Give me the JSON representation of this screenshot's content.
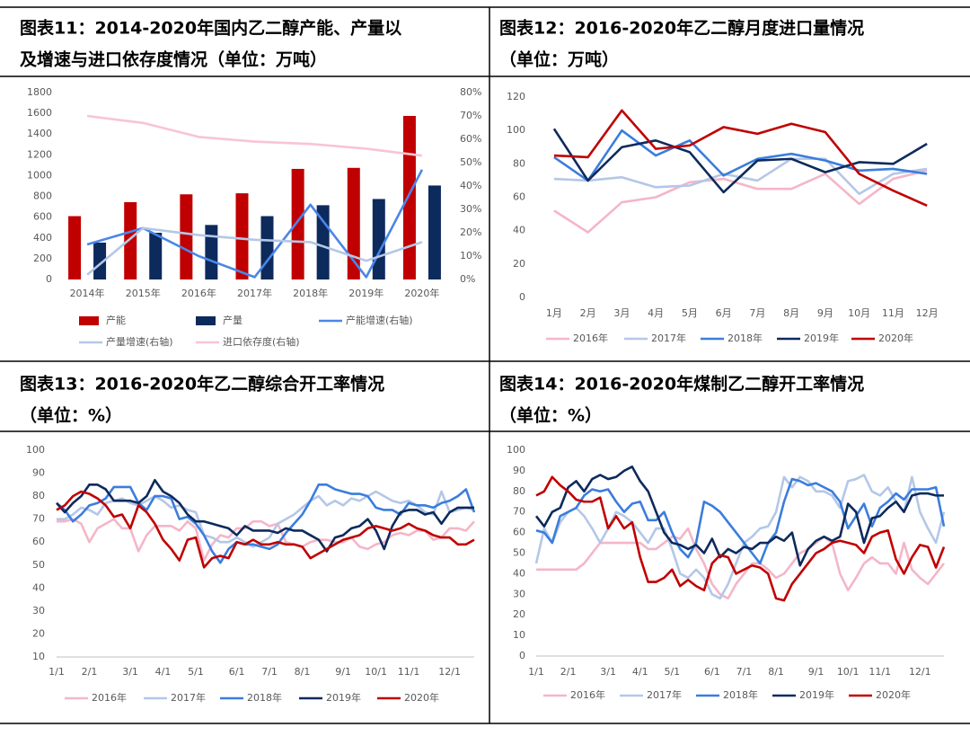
{
  "chart_data": [
    {
      "type": "bar",
      "title": [
        "图表11：2014-2020年国内乙二醇产能、产量以",
        "及增速与进口依存度情况（单位：万吨）"
      ],
      "categories": [
        "2014年",
        "2015年",
        "2016年",
        "2017年",
        "2018年",
        "2019年",
        "2020年"
      ],
      "series": [
        {
          "name": "产能",
          "type": "bar",
          "color": "#c00000",
          "values": [
            610,
            745,
            820,
            830,
            1065,
            1075,
            1575
          ]
        },
        {
          "name": "产量",
          "type": "bar",
          "color": "#0d2a5c",
          "values": [
            355,
            450,
            525,
            610,
            715,
            775,
            905
          ]
        },
        {
          "name": "产能增速(右轴)",
          "type": "line",
          "axis": "y2",
          "color": "#4a86e8",
          "values": [
            15,
            22,
            10,
            1,
            32,
            1,
            47
          ]
        },
        {
          "name": "产量增速(右轴)",
          "type": "line",
          "axis": "y2",
          "color": "#b4c7e7",
          "values": [
            2,
            22,
            19,
            17,
            16,
            8,
            16
          ]
        },
        {
          "name": "进口依存度(右轴)",
          "type": "line",
          "axis": "y2",
          "color": "#f9c4d2",
          "values": [
            70,
            67,
            61,
            59,
            58,
            56,
            53
          ]
        }
      ],
      "ylim": [
        0,
        1800
      ],
      "yticks": [
        0,
        200,
        400,
        600,
        800,
        1000,
        1200,
        1400,
        1600,
        1800
      ],
      "y2lim": [
        0,
        80
      ],
      "y2ticks": [
        {
          "value": 0,
          "label": "0%"
        },
        {
          "value": 10,
          "label": "10%"
        },
        {
          "value": 20,
          "label": "20%"
        },
        {
          "value": 30,
          "label": "30%"
        },
        {
          "value": 40,
          "label": "40%"
        },
        {
          "value": 50,
          "label": "50%"
        },
        {
          "value": 60,
          "label": "60%"
        },
        {
          "value": 70,
          "label": "70%"
        },
        {
          "value": 80,
          "label": "80%"
        }
      ],
      "grid": false
    },
    {
      "type": "line",
      "title": [
        "图表12：2016-2020年乙二醇月度进口量情况",
        "（单位：万吨）"
      ],
      "categories": [
        "1月",
        "2月",
        "3月",
        "4月",
        "5月",
        "6月",
        "7月",
        "8月",
        "9月",
        "10月",
        "11月",
        "12月"
      ],
      "series": [
        {
          "name": "2016年",
          "color": "#f4b6c8",
          "values": [
            52,
            39,
            57,
            60,
            69,
            71,
            65,
            65,
            74,
            56,
            71,
            76
          ]
        },
        {
          "name": "2017年",
          "color": "#b4c7e7",
          "values": [
            71,
            70,
            72,
            66,
            67,
            74,
            70,
            83,
            83,
            62,
            74,
            77
          ]
        },
        {
          "name": "2018年",
          "color": "#3b7ddd",
          "values": [
            84,
            70,
            100,
            85,
            94,
            73,
            83,
            86,
            82,
            76,
            77,
            74
          ]
        },
        {
          "name": "2019年",
          "color": "#0d2a5c",
          "values": [
            101,
            70,
            90,
            94,
            87,
            63,
            82,
            83,
            75,
            81,
            80,
            92
          ]
        },
        {
          "name": "2020年",
          "color": "#c00000",
          "values": [
            85,
            84,
            112,
            89,
            91,
            102,
            98,
            104,
            99,
            74,
            64,
            55
          ]
        }
      ],
      "ylim": [
        0,
        120
      ],
      "yticks": [
        0,
        20,
        40,
        60,
        80,
        100,
        120
      ],
      "grid": false
    },
    {
      "type": "line",
      "title": [
        "图表13：2016-2020年乙二醇综合开工率情况",
        "（单位：%）"
      ],
      "categories": [
        "1/1",
        null,
        null,
        null,
        "2/1",
        null,
        null,
        null,
        null,
        "3/1",
        null,
        null,
        null,
        "4/1",
        null,
        null,
        null,
        "5/1",
        null,
        null,
        null,
        null,
        "6/1",
        null,
        null,
        null,
        "7/1",
        null,
        null,
        null,
        "8/1",
        null,
        null,
        null,
        null,
        "9/1",
        null,
        null,
        null,
        "10/1",
        null,
        null,
        null,
        "11/1",
        null,
        null,
        null,
        null,
        "12/1",
        null,
        null,
        null
      ],
      "series": [
        {
          "name": "2016年",
          "color": "#f4b6c8",
          "values": [
            69,
            69,
            70,
            68,
            60,
            66,
            68,
            70,
            66,
            66,
            56,
            63,
            67,
            67,
            67,
            65,
            69,
            66,
            52,
            59,
            63,
            62,
            66,
            66,
            69,
            69,
            67,
            68,
            60,
            59,
            58,
            60,
            61,
            61,
            60,
            60,
            62,
            58,
            57,
            59,
            60,
            63,
            64,
            63,
            65,
            65,
            61,
            62,
            66,
            66,
            65,
            69
          ]
        },
        {
          "name": "2017年",
          "color": "#b4c7e7",
          "values": [
            70,
            70,
            72,
            75,
            74,
            72,
            77,
            78,
            79,
            77,
            76,
            78,
            80,
            78,
            75,
            76,
            74,
            73,
            63,
            62,
            60,
            60,
            62,
            60,
            58,
            60,
            62,
            68,
            70,
            72,
            75,
            78,
            80,
            76,
            78,
            76,
            79,
            78,
            80,
            82,
            80,
            78,
            77,
            78,
            76,
            73,
            72,
            82,
            73,
            74,
            75,
            74
          ]
        },
        {
          "name": "2018年",
          "color": "#3b7ddd",
          "values": [
            77,
            74,
            69,
            72,
            76,
            77,
            79,
            84,
            84,
            84,
            77,
            74,
            80,
            80,
            79,
            70,
            71,
            68,
            63,
            56,
            51,
            57,
            60,
            59,
            59,
            58,
            57,
            59,
            64,
            68,
            72,
            78,
            85,
            85,
            83,
            82,
            81,
            81,
            80,
            75,
            74,
            74,
            72,
            77,
            76,
            76,
            75,
            77,
            78,
            80,
            83,
            73
          ]
        },
        {
          "name": "2019年",
          "color": "#0d2a5c",
          "values": [
            77,
            73,
            77,
            80,
            85,
            85,
            83,
            78,
            78,
            78,
            77,
            80,
            87,
            82,
            80,
            77,
            72,
            69,
            69,
            68,
            67,
            66,
            63,
            67,
            65,
            65,
            65,
            64,
            66,
            65,
            65,
            63,
            61,
            56,
            62,
            63,
            66,
            67,
            70,
            65,
            57,
            67,
            73,
            74,
            74,
            72,
            73,
            68,
            73,
            75,
            75,
            75
          ]
        },
        {
          "name": "2020年",
          "color": "#c00000",
          "values": [
            74,
            76,
            80,
            82,
            81,
            79,
            76,
            71,
            72,
            66,
            76,
            73,
            68,
            61,
            57,
            52,
            61,
            62,
            49,
            53,
            54,
            53,
            60,
            59,
            61,
            59,
            59,
            60,
            59,
            59,
            58,
            53,
            55,
            57,
            59,
            61,
            62,
            63,
            66,
            67,
            66,
            65,
            66,
            68,
            66,
            65,
            63,
            62,
            62,
            59,
            59,
            61
          ]
        }
      ],
      "ylim": [
        10,
        100
      ],
      "yticks": [
        10,
        20,
        30,
        40,
        50,
        60,
        70,
        80,
        90,
        100
      ],
      "grid": false
    },
    {
      "type": "line",
      "title": [
        "图表14：2016-2020年煤制乙二醇开工率情况",
        "（单位：%）"
      ],
      "categories": [
        "1/1",
        null,
        null,
        null,
        "2/1",
        null,
        null,
        null,
        null,
        "3/1",
        null,
        null,
        null,
        "4/1",
        null,
        null,
        null,
        "5/1",
        null,
        null,
        null,
        null,
        "6/1",
        null,
        null,
        null,
        "7/1",
        null,
        null,
        null,
        "8/1",
        null,
        null,
        null,
        null,
        "9/1",
        null,
        null,
        null,
        "10/1",
        null,
        null,
        null,
        "11/1",
        null,
        null,
        null,
        null,
        "12/1",
        null,
        null,
        null
      ],
      "series": [
        {
          "name": "2016年",
          "color": "#f4b6c8",
          "values": [
            42,
            42,
            42,
            42,
            42,
            42,
            45,
            50,
            55,
            55,
            55,
            55,
            55,
            55,
            52,
            52,
            55,
            58,
            57,
            62,
            52,
            45,
            35,
            30,
            28,
            35,
            40,
            45,
            45,
            42,
            38,
            40,
            45,
            50,
            52,
            55,
            58,
            55,
            40,
            32,
            38,
            45,
            48,
            45,
            45,
            40,
            55,
            42,
            38,
            35,
            40,
            45
          ]
        },
        {
          "name": "2017年",
          "color": "#b4c7e7",
          "values": [
            45,
            62,
            55,
            65,
            70,
            72,
            68,
            62,
            55,
            62,
            70,
            68,
            65,
            60,
            55,
            62,
            62,
            52,
            40,
            38,
            42,
            38,
            30,
            28,
            35,
            45,
            55,
            58,
            62,
            63,
            70,
            87,
            82,
            87,
            85,
            80,
            80,
            78,
            72,
            85,
            86,
            88,
            80,
            78,
            82,
            75,
            70,
            87,
            70,
            62,
            55,
            70
          ]
        },
        {
          "name": "2018年",
          "color": "#3b7ddd",
          "values": [
            61,
            60,
            55,
            68,
            70,
            72,
            78,
            81,
            80,
            81,
            75,
            70,
            74,
            75,
            66,
            66,
            70,
            60,
            52,
            48,
            55,
            75,
            73,
            70,
            65,
            60,
            55,
            50,
            45,
            55,
            60,
            75,
            86,
            85,
            83,
            84,
            82,
            80,
            75,
            62,
            68,
            74,
            63,
            72,
            75,
            79,
            76,
            81,
            81,
            81,
            82,
            63
          ]
        },
        {
          "name": "2019年",
          "color": "#0d2a5c",
          "values": [
            68,
            63,
            70,
            72,
            82,
            85,
            80,
            86,
            88,
            86,
            87,
            90,
            92,
            85,
            80,
            70,
            60,
            55,
            54,
            52,
            54,
            50,
            57,
            48,
            52,
            50,
            53,
            52,
            55,
            55,
            58,
            56,
            60,
            44,
            52,
            56,
            58,
            56,
            58,
            74,
            70,
            55,
            67,
            68,
            72,
            75,
            70,
            78,
            79,
            79,
            78,
            78
          ]
        },
        {
          "name": "2020年",
          "color": "#c00000",
          "values": [
            78,
            80,
            87,
            83,
            80,
            76,
            75,
            75,
            77,
            62,
            68,
            62,
            65,
            48,
            36,
            36,
            38,
            42,
            34,
            37,
            34,
            32,
            45,
            49,
            48,
            40,
            42,
            44,
            43,
            40,
            28,
            27,
            35,
            40,
            45,
            50,
            52,
            55,
            56,
            55,
            54,
            50,
            58,
            60,
            61,
            47,
            40,
            48,
            54,
            53,
            43,
            53
          ]
        }
      ],
      "ylim": [
        0,
        100
      ],
      "yticks": [
        0,
        10,
        20,
        30,
        40,
        50,
        60,
        70,
        80,
        90,
        100
      ],
      "grid": false
    }
  ]
}
